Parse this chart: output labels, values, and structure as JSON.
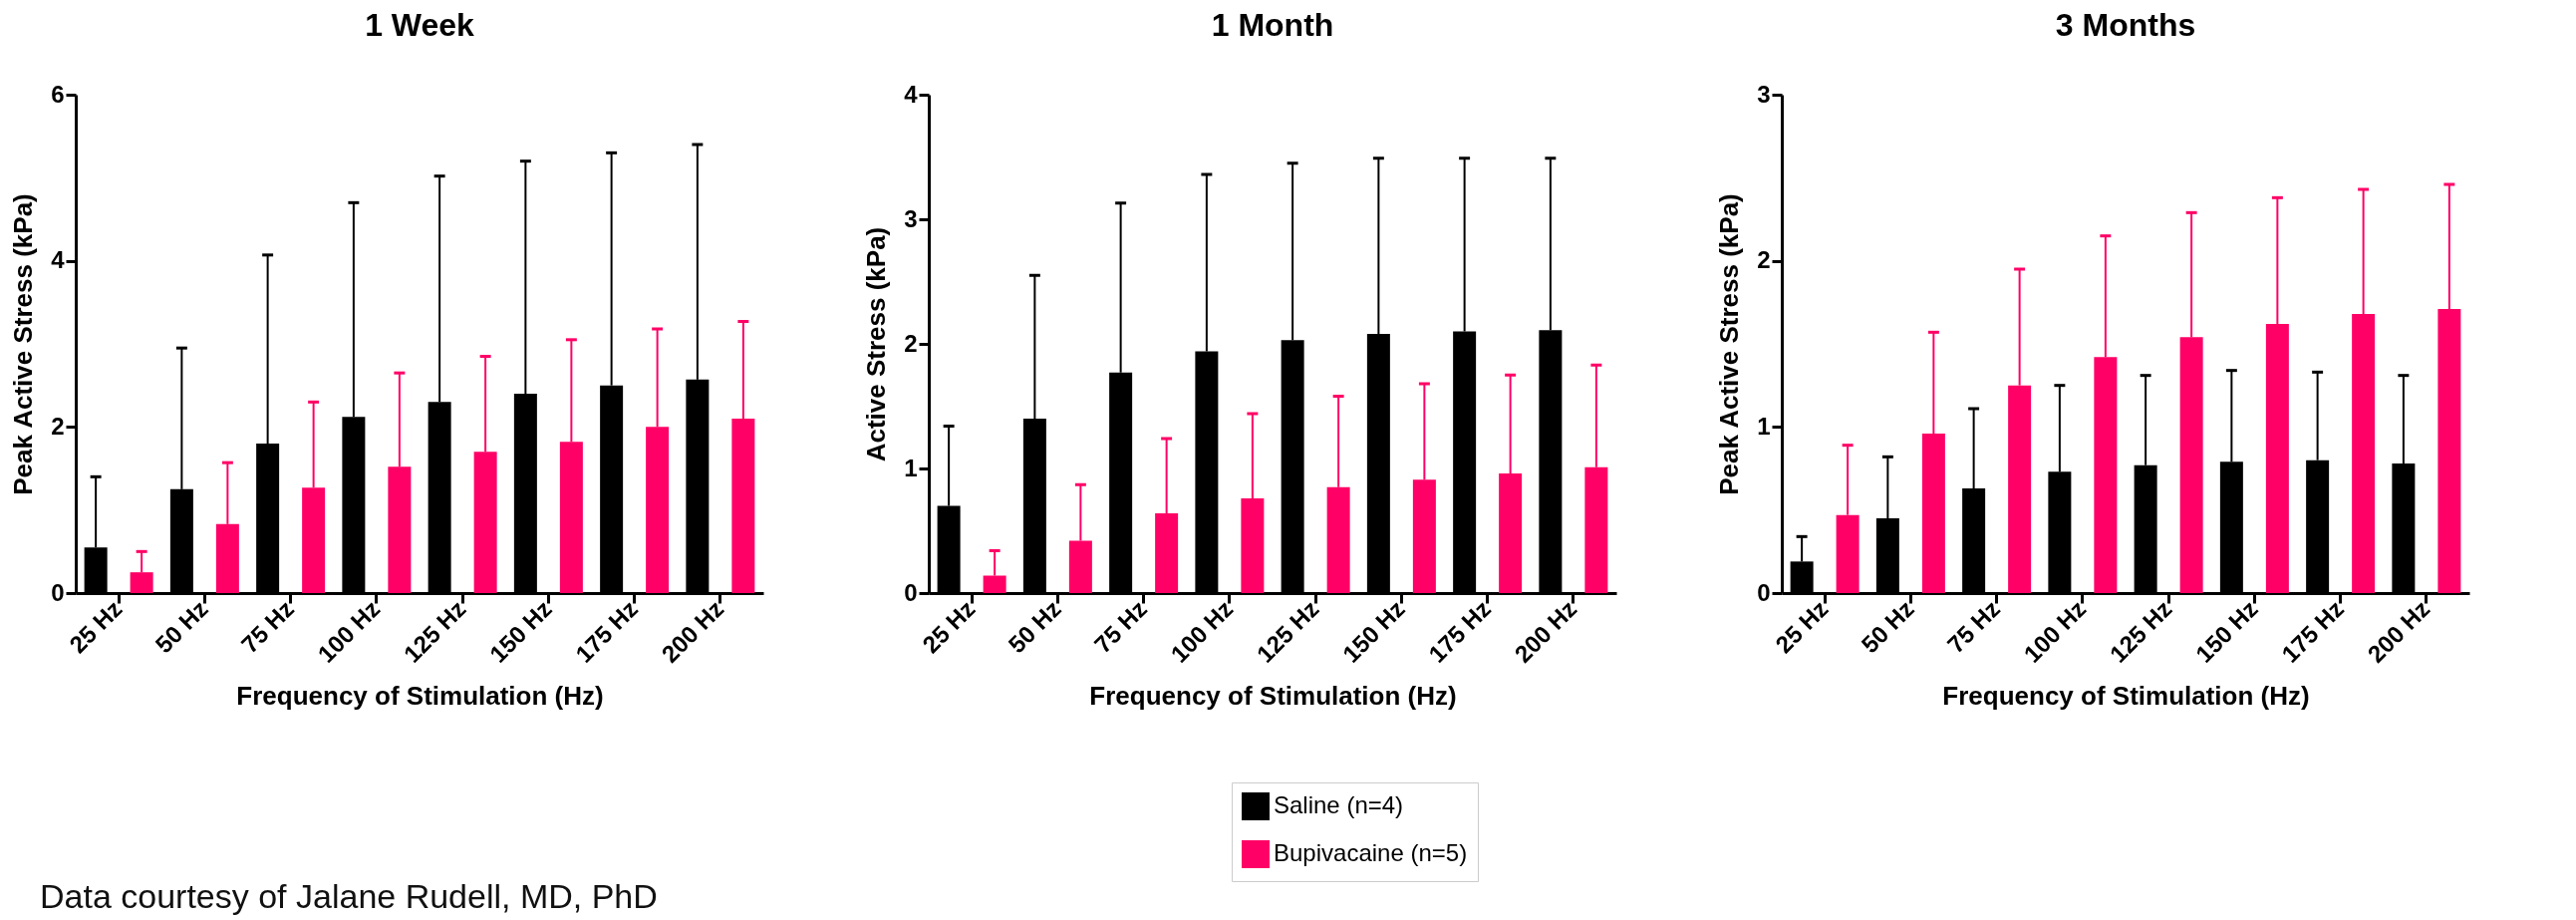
{
  "chart_data": [
    {
      "type": "bar",
      "title": "1 Week",
      "xlabel": "Frequency of Stimulation (Hz)",
      "ylabel": "Peak Active Stress (kPa)",
      "categories": [
        "25 Hz",
        "50 Hz",
        "75 Hz",
        "100 Hz",
        "125 Hz",
        "150 Hz",
        "175 Hz",
        "200 Hz"
      ],
      "ylim": [
        0,
        6
      ],
      "yticks": [
        0,
        2,
        4,
        6
      ],
      "grid": false,
      "legend": "bottom",
      "series": [
        {
          "name": "Saline (n=4)",
          "color": "#000000",
          "values": [
            0.55,
            1.25,
            1.8,
            2.12,
            2.3,
            2.4,
            2.5,
            2.57
          ],
          "errors": [
            [
              0.55,
              1.4
            ],
            [
              1.25,
              2.95
            ],
            [
              1.8,
              4.07
            ],
            [
              2.12,
              4.7
            ],
            [
              2.3,
              5.02
            ],
            [
              2.4,
              5.2
            ],
            [
              2.5,
              5.3
            ],
            [
              2.57,
              5.4
            ]
          ]
        },
        {
          "name": "Bupivacaine (n=5)",
          "color": "#ff0066",
          "values": [
            0.25,
            0.83,
            1.27,
            1.52,
            1.7,
            1.82,
            2.0,
            2.1
          ],
          "errors": [
            [
              0.25,
              0.5
            ],
            [
              0.83,
              1.57
            ],
            [
              1.27,
              2.3
            ],
            [
              1.52,
              2.65
            ],
            [
              1.7,
              2.85
            ],
            [
              1.82,
              3.05
            ],
            [
              2.0,
              3.18
            ],
            [
              2.1,
              3.27
            ]
          ]
        }
      ],
      "annotations": [
        "Data courtesy of Jalane Rudell, MD, PhD"
      ]
    },
    {
      "type": "bar",
      "title": "1 Month",
      "xlabel": "Frequency of Stimulation (Hz)",
      "ylabel": "Active Stress (kPa)",
      "categories": [
        "25 Hz",
        "50 Hz",
        "75 Hz",
        "100 Hz",
        "125 Hz",
        "150 Hz",
        "175 Hz",
        "200 Hz"
      ],
      "ylim": [
        0,
        4
      ],
      "yticks": [
        0,
        1,
        2,
        3,
        4
      ],
      "grid": false,
      "legend": "bottom",
      "series": [
        {
          "name": "Saline (n=4)",
          "color": "#000000",
          "values": [
            0.7,
            1.4,
            1.77,
            1.94,
            2.03,
            2.08,
            2.1,
            2.11
          ],
          "errors": [
            [
              0.7,
              1.34
            ],
            [
              1.4,
              2.55
            ],
            [
              1.77,
              3.13
            ],
            [
              1.94,
              3.36
            ],
            [
              2.03,
              3.45
            ],
            [
              2.08,
              3.49
            ],
            [
              2.1,
              3.49
            ],
            [
              2.11,
              3.49
            ]
          ]
        },
        {
          "name": "Bupivacaine (n=5)",
          "color": "#ff0066",
          "values": [
            0.14,
            0.42,
            0.64,
            0.76,
            0.85,
            0.91,
            0.96,
            1.01
          ],
          "errors": [
            [
              0.14,
              0.34
            ],
            [
              0.42,
              0.87
            ],
            [
              0.64,
              1.24
            ],
            [
              0.76,
              1.44
            ],
            [
              0.85,
              1.58
            ],
            [
              0.91,
              1.68
            ],
            [
              0.96,
              1.75
            ],
            [
              1.01,
              1.83
            ]
          ]
        }
      ]
    },
    {
      "type": "bar",
      "title": "3 Months",
      "xlabel": "Frequency of Stimulation (Hz)",
      "ylabel": "Peak Active Stress (kPa)",
      "categories": [
        "25 Hz",
        "50 Hz",
        "75 Hz",
        "100 Hz",
        "125 Hz",
        "150 Hz",
        "175 Hz",
        "200 Hz"
      ],
      "ylim": [
        0,
        3
      ],
      "yticks": [
        0,
        1,
        2,
        3
      ],
      "grid": false,
      "legend": "bottom",
      "series": [
        {
          "name": "Saline (n=4)",
          "color": "#000000",
          "values": [
            0.19,
            0.45,
            0.63,
            0.73,
            0.77,
            0.79,
            0.8,
            0.78
          ],
          "errors": [
            [
              0.19,
              0.34
            ],
            [
              0.45,
              0.82
            ],
            [
              0.63,
              1.11
            ],
            [
              0.73,
              1.25
            ],
            [
              0.77,
              1.31
            ],
            [
              0.79,
              1.34
            ],
            [
              0.8,
              1.33
            ],
            [
              0.78,
              1.31
            ]
          ]
        },
        {
          "name": "Bupivacaine (n=5)",
          "color": "#ff0066",
          "values": [
            0.47,
            0.96,
            1.25,
            1.42,
            1.54,
            1.62,
            1.68,
            1.71
          ],
          "errors": [
            [
              0.47,
              0.89
            ],
            [
              0.96,
              1.57
            ],
            [
              1.25,
              1.95
            ],
            [
              1.42,
              2.15
            ],
            [
              1.54,
              2.29
            ],
            [
              1.62,
              2.38
            ],
            [
              1.68,
              2.43
            ],
            [
              1.71,
              2.46
            ]
          ]
        }
      ]
    }
  ]
}
